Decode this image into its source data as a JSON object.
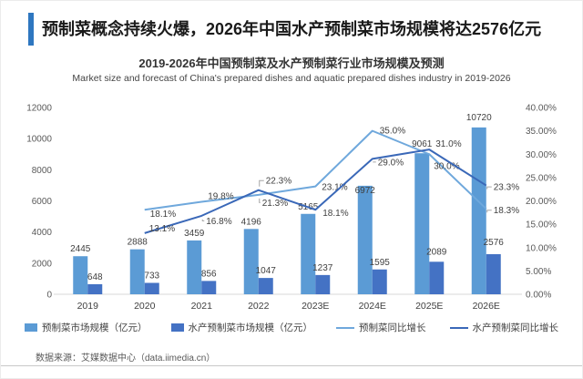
{
  "page": {
    "header_title": "预制菜概念持续火爆，2026年中国水产预制菜市场规模将达2576亿元",
    "accent_color": "#2E77C0",
    "footer_source": "数据来源：艾媒数据中心（data.iimedia.cn）"
  },
  "chart_data": {
    "type": "bar+line",
    "title": "2019-2026年中国预制菜及水产预制菜行业市场规模及预测",
    "subtitle": "Market size and forecast of China's prepared dishes and aquatic prepared dishes industry in 2019-2026",
    "categories": [
      "2019",
      "2020",
      "2021",
      "2022",
      "2023E",
      "2024E",
      "2025E",
      "2026E"
    ],
    "bar_series": [
      {
        "name": "预制菜市场规模（亿元）",
        "color": "#5B9BD5",
        "axis": "left",
        "values": [
          2445,
          2888,
          3459,
          4196,
          5165,
          6972,
          9061,
          10720
        ]
      },
      {
        "name": "水产预制菜市场规模（亿元）",
        "color": "#4472C4",
        "axis": "left",
        "values": [
          648,
          733,
          856,
          1047,
          1237,
          1595,
          2089,
          2576
        ]
      }
    ],
    "line_series": [
      {
        "name": "预制菜同比增长",
        "color": "#6FA8DC",
        "axis": "right",
        "values": [
          null,
          18.1,
          19.8,
          21.3,
          23.1,
          35.0,
          30.0,
          18.3
        ]
      },
      {
        "name": "水产预制菜同比增长",
        "color": "#3A68B8",
        "axis": "right",
        "values": [
          null,
          13.1,
          16.8,
          22.3,
          18.1,
          29.0,
          31.0,
          23.3
        ]
      }
    ],
    "left_axis": {
      "min": 0,
      "max": 12000,
      "tick_labels": [
        "0",
        "2000",
        "4000",
        "6000",
        "8000",
        "10000",
        "12000"
      ]
    },
    "right_axis": {
      "min": 0,
      "max": 40,
      "tick_labels": [
        "0.00%",
        "5.00%",
        "10.00%",
        "15.00%",
        "20.00%",
        "25.00%",
        "30.00%",
        "35.00%",
        "40.00%"
      ]
    },
    "legend_position": "bottom",
    "grid": false
  }
}
